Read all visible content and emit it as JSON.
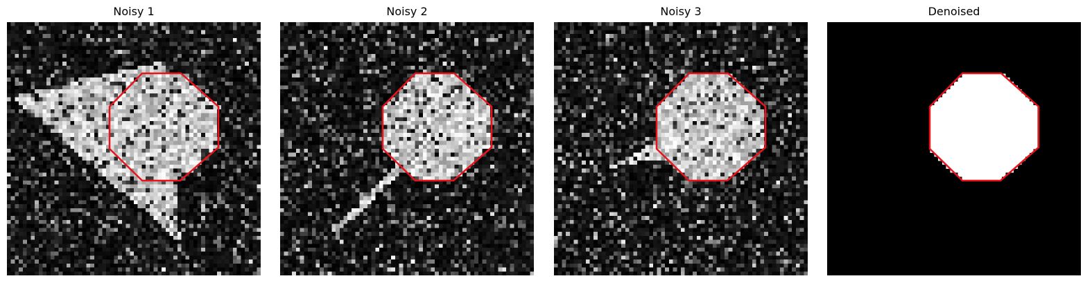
{
  "panels": [
    {
      "title": "Noisy 1",
      "kind": "noisy",
      "shape": "triangle-large"
    },
    {
      "title": "Noisy 2",
      "kind": "noisy",
      "shape": "thin-streak"
    },
    {
      "title": "Noisy 3",
      "kind": "noisy",
      "shape": "small-wedge"
    },
    {
      "title": "Denoised",
      "kind": "clean",
      "shape": "none"
    }
  ],
  "outline_color": "#e8141c",
  "object_shape": "octagon"
}
